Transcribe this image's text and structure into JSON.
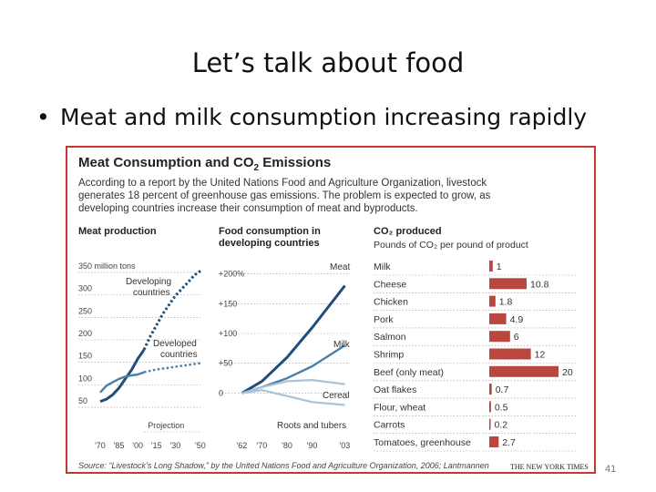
{
  "slide": {
    "title": "Let’s talk about food",
    "bullet": "Meat and milk consumption increasing rapidly",
    "page_number": "41"
  },
  "figure": {
    "title": "Meat Consumption and CO",
    "title_sub": "2",
    "title_suffix": " Emissions",
    "description": "According to a report by the United Nations Food and Agriculture Organization, livestock generates 18 percent of greenhouse gas emissions. The problem is expected to grow, as developing countries increase their consumption of meat and byproducts.",
    "source": "Source: “Livestock’s Long Shadow,” by the United Nations Food and Agriculture Organization, 2006; Lantmannen",
    "credit": "THE NEW YORK TIMES"
  },
  "colors": {
    "dark_blue": "#1f4e79",
    "mid_blue": "#4a7fa8",
    "light_blue": "#a9c3d8",
    "bar_red": "#b9473e",
    "border_red": "#c43a32"
  },
  "chart_data": [
    {
      "type": "line",
      "title": "Meat production",
      "y_tick_labels": [
        "350 million tons",
        "300",
        "250",
        "200",
        "150",
        "100",
        "50"
      ],
      "y_ticks": [
        350,
        300,
        250,
        200,
        150,
        100,
        50
      ],
      "x_tick_labels": [
        "'70",
        "'85",
        "'00",
        "'15",
        "'30",
        "'50"
      ],
      "xlim": [
        1970,
        2050
      ],
      "ylim": [
        40,
        360
      ],
      "annotation": "Projection",
      "projection_start": 2005,
      "series": [
        {
          "name": "Developing countries",
          "x": [
            1970,
            1975,
            1980,
            1985,
            1990,
            1995,
            2000,
            2005,
            2010,
            2015,
            2020,
            2025,
            2030,
            2035,
            2040,
            2045,
            2050
          ],
          "y": [
            55,
            60,
            70,
            85,
            105,
            125,
            150,
            170,
            200,
            225,
            250,
            270,
            290,
            305,
            320,
            335,
            345
          ],
          "color": "#1f4e79"
        },
        {
          "name": "Developed countries",
          "x": [
            1970,
            1975,
            1980,
            1985,
            1990,
            1995,
            2000,
            2005,
            2010,
            2015,
            2020,
            2025,
            2030,
            2035,
            2040,
            2045,
            2050
          ],
          "y": [
            75,
            90,
            98,
            105,
            110,
            113,
            115,
            120,
            123,
            126,
            128,
            130,
            132,
            134,
            136,
            138,
            140
          ],
          "color": "#4a7fa8"
        }
      ],
      "series_label_lines": [
        [
          "Developing",
          "countries"
        ],
        [
          "Developed",
          "countries"
        ]
      ]
    },
    {
      "type": "line",
      "title": "Food consumption in developing countries",
      "y_tick_labels": [
        "+200%",
        "+150",
        "+100",
        "+50",
        "0"
      ],
      "y_ticks": [
        200,
        150,
        100,
        50,
        0
      ],
      "x_tick_labels": [
        "'62",
        "'70",
        "'80",
        "'90",
        "'03"
      ],
      "x": [
        1962,
        1970,
        1980,
        1990,
        2003
      ],
      "xlim": [
        1960,
        2005
      ],
      "ylim": [
        -10,
        210
      ],
      "series": [
        {
          "name": "Meat",
          "y": [
            0,
            20,
            60,
            110,
            180
          ],
          "color": "#1f4e79"
        },
        {
          "name": "Milk",
          "y": [
            0,
            10,
            25,
            45,
            80
          ],
          "color": "#4a7fa8"
        },
        {
          "name": "Cereal",
          "y": [
            0,
            10,
            20,
            22,
            15
          ],
          "color": "#a9c3d8"
        },
        {
          "name": "Roots and tubers",
          "y": [
            0,
            5,
            -5,
            -15,
            -20
          ],
          "color": "#a9c3d8"
        }
      ]
    },
    {
      "type": "bar",
      "orientation": "horizontal",
      "title": "CO₂ produced",
      "subtitle": "Pounds of CO₂ per pound of product",
      "categories": [
        "Milk",
        "Cheese",
        "Chicken",
        "Pork",
        "Salmon",
        "Shrimp",
        "Beef (only meat)",
        "Oat flakes",
        "Flour, wheat",
        "Carrots",
        "Tomatoes, greenhouse"
      ],
      "values": [
        1,
        10.8,
        1.8,
        4.9,
        6,
        12,
        20,
        0.7,
        0.5,
        0.2,
        2.7
      ],
      "value_labels": [
        "1",
        "10.8",
        "1.8",
        "4.9",
        "6",
        "12",
        "20",
        "0.7",
        "0.5",
        "0.2",
        "2.7"
      ],
      "color": "#b9473e",
      "xlim": [
        0,
        20
      ]
    }
  ]
}
